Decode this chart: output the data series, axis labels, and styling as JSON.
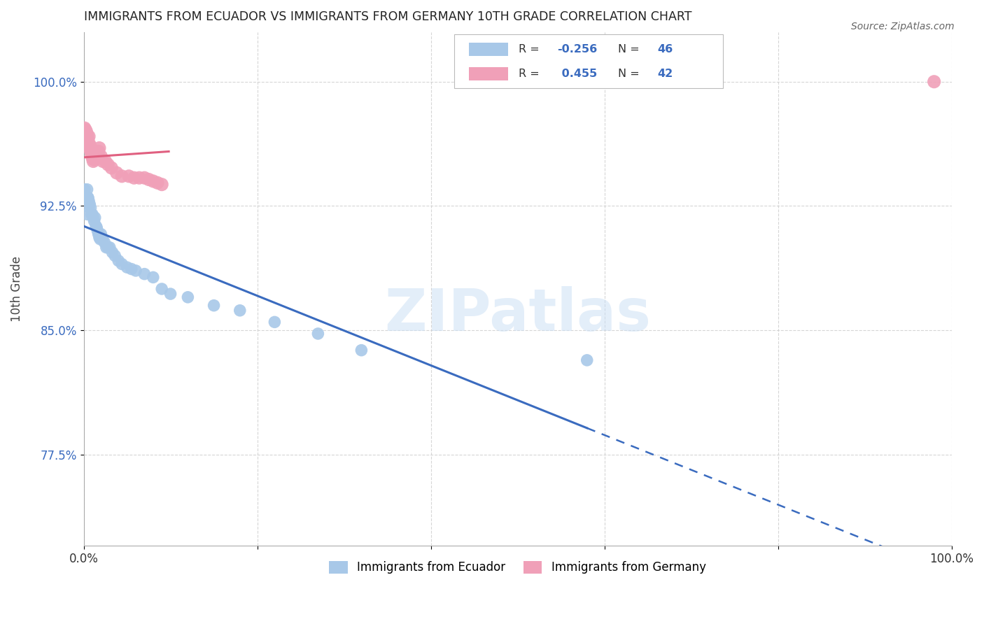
{
  "title": "IMMIGRANTS FROM ECUADOR VS IMMIGRANTS FROM GERMANY 10TH GRADE CORRELATION CHART",
  "source": "Source: ZipAtlas.com",
  "ylabel": "10th Grade",
  "xlim": [
    0.0,
    1.0
  ],
  "ylim": [
    0.72,
    1.03
  ],
  "yticks": [
    0.775,
    0.85,
    0.925,
    1.0
  ],
  "ytick_labels": [
    "77.5%",
    "85.0%",
    "92.5%",
    "100.0%"
  ],
  "xticks": [
    0.0,
    0.2,
    0.4,
    0.6,
    0.8,
    1.0
  ],
  "xtick_labels": [
    "0.0%",
    "",
    "",
    "",
    "",
    "100.0%"
  ],
  "ecuador_color": "#a8c8e8",
  "germany_color": "#f0a0b8",
  "ecuador_label": "Immigrants from Ecuador",
  "germany_label": "Immigrants from Germany",
  "ecuador_R": -0.256,
  "ecuador_N": 46,
  "germany_R": 0.455,
  "germany_N": 42,
  "ecuador_line_color": "#3a6bbf",
  "germany_line_color": "#e06080",
  "watermark": "ZIPatlas",
  "ecuador_points_x": [
    0.001,
    0.002,
    0.003,
    0.003,
    0.004,
    0.004,
    0.005,
    0.005,
    0.006,
    0.007,
    0.008,
    0.009,
    0.01,
    0.011,
    0.012,
    0.013,
    0.014,
    0.015,
    0.016,
    0.017,
    0.018,
    0.019,
    0.02,
    0.022,
    0.024,
    0.026,
    0.028,
    0.03,
    0.033,
    0.036,
    0.04,
    0.044,
    0.05,
    0.055,
    0.06,
    0.07,
    0.08,
    0.09,
    0.1,
    0.12,
    0.15,
    0.18,
    0.22,
    0.27,
    0.32,
    0.58
  ],
  "ecuador_points_y": [
    0.935,
    0.93,
    0.93,
    0.925,
    0.935,
    0.92,
    0.93,
    0.93,
    0.928,
    0.926,
    0.924,
    0.92,
    0.92,
    0.918,
    0.916,
    0.918,
    0.913,
    0.912,
    0.91,
    0.908,
    0.906,
    0.905,
    0.908,
    0.905,
    0.903,
    0.9,
    0.9,
    0.9,
    0.897,
    0.895,
    0.892,
    0.89,
    0.888,
    0.887,
    0.886,
    0.884,
    0.882,
    0.875,
    0.872,
    0.87,
    0.865,
    0.862,
    0.855,
    0.848,
    0.838,
    0.832
  ],
  "germany_points_x": [
    0.001,
    0.002,
    0.002,
    0.003,
    0.003,
    0.004,
    0.005,
    0.005,
    0.006,
    0.006,
    0.007,
    0.007,
    0.008,
    0.008,
    0.009,
    0.009,
    0.01,
    0.01,
    0.011,
    0.012,
    0.013,
    0.014,
    0.015,
    0.016,
    0.017,
    0.018,
    0.02,
    0.022,
    0.025,
    0.028,
    0.032,
    0.038,
    0.044,
    0.052,
    0.058,
    0.064,
    0.07,
    0.075,
    0.08,
    0.085,
    0.09,
    0.98
  ],
  "germany_points_y": [
    0.972,
    0.971,
    0.968,
    0.97,
    0.966,
    0.968,
    0.965,
    0.963,
    0.967,
    0.962,
    0.962,
    0.96,
    0.96,
    0.958,
    0.958,
    0.956,
    0.956,
    0.954,
    0.952,
    0.953,
    0.955,
    0.958,
    0.955,
    0.956,
    0.958,
    0.96,
    0.955,
    0.952,
    0.952,
    0.95,
    0.948,
    0.945,
    0.943,
    0.943,
    0.942,
    0.942,
    0.942,
    0.941,
    0.94,
    0.939,
    0.938,
    1.0
  ],
  "ecu_line_x0": 0.0,
  "ecu_line_x1": 0.58,
  "ecu_line_x2": 1.0,
  "ecu_line_y_intercept": 0.928,
  "ecu_line_slope": -0.155,
  "ger_line_x0": 0.001,
  "ger_line_x1": 0.098,
  "ger_line_y_intercept": 0.968,
  "ger_line_slope": -0.24
}
